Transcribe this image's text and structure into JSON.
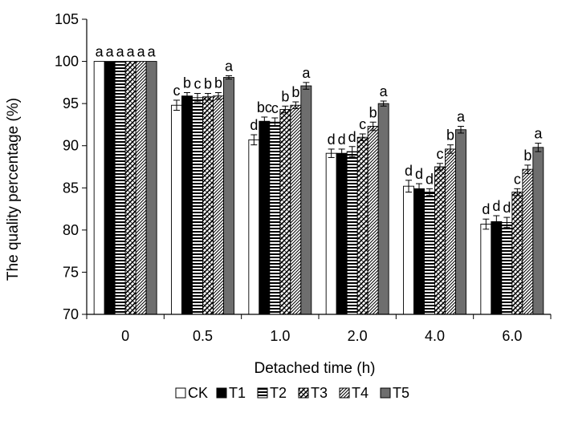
{
  "chart_data": {
    "type": "bar",
    "xlabel": "Detached time (h)",
    "ylabel": "The quality percentage (%)",
    "ylim": [
      70,
      105
    ],
    "yticks": [
      "70",
      "75",
      "80",
      "85",
      "90",
      "95",
      "100",
      "105"
    ],
    "categories": [
      "0",
      "0.5",
      "1.0",
      "2.0",
      "4.0",
      "6.0"
    ],
    "legend_position": "bottom",
    "series": [
      {
        "name": "CK",
        "pattern": "white",
        "values": [
          100,
          94.8,
          90.7,
          89.1,
          85.2,
          80.7
        ],
        "errors": [
          0,
          0.6,
          0.6,
          0.5,
          0.7,
          0.6
        ],
        "letters": [
          "a",
          "c",
          "d",
          "d",
          "d",
          "d"
        ]
      },
      {
        "name": "T1",
        "pattern": "black",
        "values": [
          100,
          95.9,
          92.9,
          89.1,
          84.9,
          81.0
        ],
        "errors": [
          0,
          0.4,
          0.5,
          0.5,
          0.6,
          0.7
        ],
        "letters": [
          "a",
          "b",
          "bc",
          "d",
          "d",
          "d"
        ]
      },
      {
        "name": "T2",
        "pattern": "horizontal-stripes",
        "values": [
          100,
          95.7,
          92.8,
          89.3,
          84.5,
          80.9
        ],
        "errors": [
          0,
          0.5,
          0.5,
          0.6,
          0.4,
          0.6
        ],
        "letters": [
          "a",
          "c",
          "c",
          "d",
          "d",
          "d"
        ]
      },
      {
        "name": "T3",
        "pattern": "diagonal-hatch",
        "values": [
          100,
          95.8,
          94.3,
          91.0,
          87.5,
          84.5
        ],
        "errors": [
          0,
          0.4,
          0.4,
          0.4,
          0.4,
          0.4
        ],
        "letters": [
          "a",
          "b",
          "b",
          "c",
          "c",
          "c"
        ]
      },
      {
        "name": "T4",
        "pattern": "dense-hatch",
        "values": [
          100,
          95.9,
          94.8,
          92.3,
          89.6,
          87.2
        ],
        "errors": [
          0,
          0.4,
          0.4,
          0.5,
          0.5,
          0.5
        ],
        "letters": [
          "a",
          "b",
          "b",
          "b",
          "b",
          "b"
        ]
      },
      {
        "name": "T5",
        "pattern": "gray",
        "values": [
          100,
          98.1,
          97.1,
          95.0,
          91.9,
          89.8
        ],
        "errors": [
          0,
          0.2,
          0.4,
          0.3,
          0.4,
          0.5
        ],
        "letters": [
          "a",
          "a",
          "a",
          "a",
          "a",
          "a"
        ]
      }
    ]
  }
}
